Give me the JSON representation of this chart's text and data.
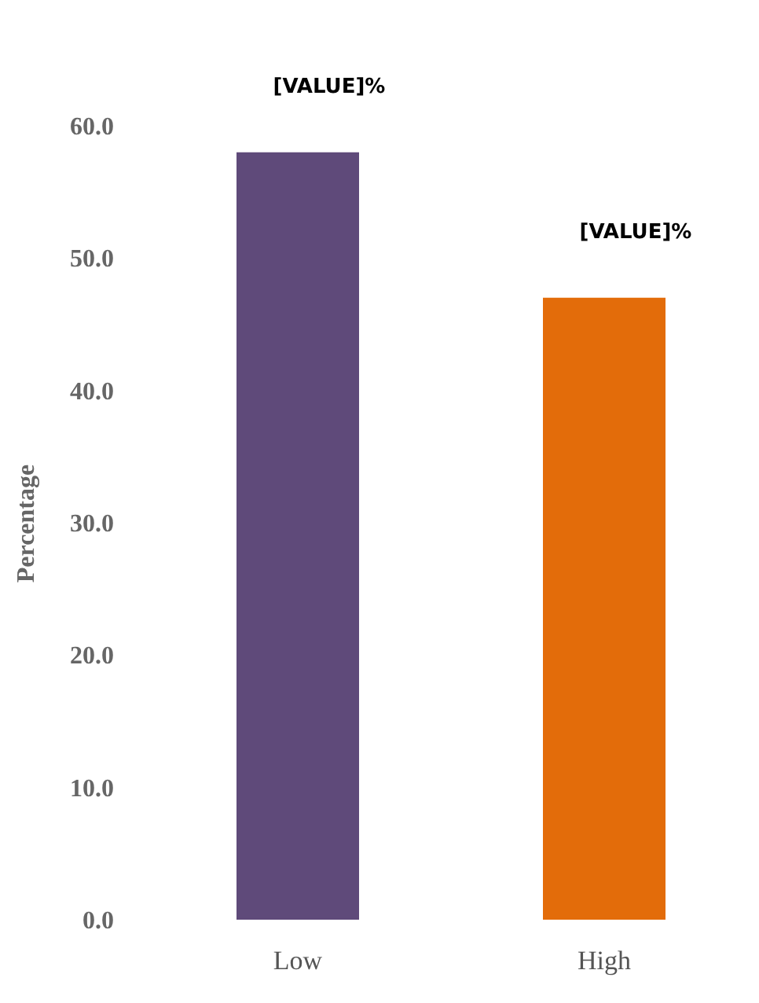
{
  "chart_data": {
    "type": "bar",
    "ylabel": "Percentage",
    "categories": [
      "Low",
      "High"
    ],
    "values": [
      58,
      47
    ],
    "colors": [
      "#5f4a7a",
      "#e36c0a"
    ],
    "value_labels": [
      "[VALUE]%",
      "[VALUE]%"
    ],
    "ylim": [
      0,
      60
    ],
    "yticks": [
      {
        "value": 0,
        "label": "0.0"
      },
      {
        "value": 10,
        "label": "10.0"
      },
      {
        "value": 20,
        "label": "20.0"
      },
      {
        "value": 30,
        "label": "30.0"
      },
      {
        "value": 40,
        "label": "40.0"
      },
      {
        "value": 50,
        "label": "50.0"
      },
      {
        "value": 60,
        "label": "60.0"
      }
    ],
    "grid": false,
    "legend": false
  }
}
